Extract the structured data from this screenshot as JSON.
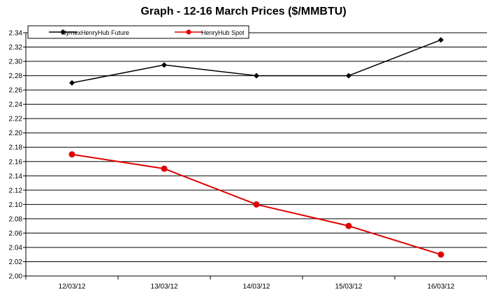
{
  "chart_data": {
    "type": "line",
    "title": "Graph - 12-16 March  Prices ($/MMBTU)",
    "categories": [
      "12/03/12",
      "13/03/12",
      "14/03/12",
      "15/03/12",
      "16/03/12"
    ],
    "series": [
      {
        "name": "NymexHenryHub Future",
        "color": "#000000",
        "marker": "diamond",
        "values": [
          2.27,
          2.295,
          2.28,
          2.28,
          2.33
        ]
      },
      {
        "name": "HenryHub Spot",
        "color": "#e00000",
        "marker": "circle",
        "values": [
          2.17,
          2.15,
          2.1,
          2.07,
          2.03
        ]
      }
    ],
    "ylim": [
      2.0,
      2.34
    ],
    "ytick_step": 0.02,
    "y_tick_labels": [
      "2.00",
      "2.02",
      "2.04",
      "2.06",
      "2.08",
      "2.10",
      "2.12",
      "2.14",
      "2.16",
      "2.18",
      "2.20",
      "2.22",
      "2.24",
      "2.26",
      "2.28",
      "2.30",
      "2.32",
      "2.34"
    ],
    "grid": true,
    "legend_position": "top-left"
  }
}
